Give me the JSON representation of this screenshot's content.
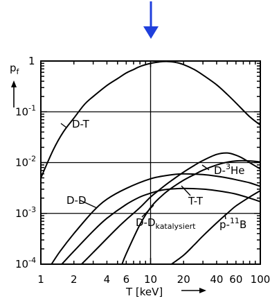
{
  "chart_data": {
    "type": "line",
    "title": "",
    "xlabel": "T [keV]",
    "ylabel": "p_f",
    "x_scale": "log",
    "y_scale": "log",
    "xlim": [
      1,
      100
    ],
    "ylim": [
      0.0001,
      1
    ],
    "x_ticks": [
      "1",
      "2",
      "4",
      "6",
      "10",
      "20",
      "40",
      "60",
      "100"
    ],
    "y_ticks": [
      "10^-4",
      "10^-3",
      "10^-2",
      "10^-1",
      "1"
    ],
    "grid_lines": {
      "x": [
        10
      ],
      "y": [
        0.001,
        0.01,
        0.1
      ]
    },
    "marker": {
      "type": "arrow",
      "color": "#1f3fdc",
      "x": 10
    },
    "series": [
      {
        "name": "D-T",
        "x": [
          1,
          1.3,
          1.6,
          2,
          2.5,
          3,
          4,
          5,
          6,
          7,
          8,
          10,
          12,
          14,
          17,
          20,
          25,
          30,
          40,
          50,
          60,
          80,
          100
        ],
        "values": [
          0.005,
          0.018,
          0.04,
          0.075,
          0.14,
          0.2,
          0.33,
          0.45,
          0.58,
          0.68,
          0.78,
          0.9,
          0.96,
          0.98,
          0.94,
          0.85,
          0.68,
          0.53,
          0.34,
          0.22,
          0.15,
          0.08,
          0.055
        ]
      },
      {
        "name": "D-D",
        "x": [
          1.25,
          1.5,
          2,
          3,
          4,
          6,
          10,
          15,
          20,
          30,
          40,
          50,
          60,
          80,
          100
        ],
        "values": [
          0.0001,
          0.00018,
          0.0004,
          0.0011,
          0.0019,
          0.0031,
          0.0048,
          0.0057,
          0.006,
          0.0058,
          0.0054,
          0.005,
          0.0046,
          0.004,
          0.0034
        ]
      },
      {
        "name": "D-D katalysiert",
        "x": [
          1.55,
          2,
          3,
          4,
          6,
          8,
          10,
          12,
          15,
          20,
          30,
          40,
          50,
          60,
          80,
          100
        ],
        "values": [
          0.0001,
          0.00018,
          0.00045,
          0.0008,
          0.0015,
          0.0021,
          0.0025,
          0.0028,
          0.003,
          0.0031,
          0.003,
          0.0028,
          0.0026,
          0.0024,
          0.002,
          0.0017
        ]
      },
      {
        "name": "D-3He",
        "x": [
          2.35,
          3,
          4,
          5,
          6,
          8,
          10,
          12,
          15,
          20,
          25,
          30,
          40,
          50,
          60,
          70,
          80,
          100
        ],
        "values": [
          0.0001,
          0.00017,
          0.00032,
          0.00052,
          0.00075,
          0.0013,
          0.0021,
          0.0029,
          0.0042,
          0.0065,
          0.0088,
          0.011,
          0.0145,
          0.0155,
          0.014,
          0.012,
          0.01,
          0.0075
        ]
      },
      {
        "name": "T-T",
        "x": [
          5.5,
          6,
          8,
          10,
          12,
          15,
          20,
          25,
          30,
          40,
          50,
          60,
          80,
          100
        ],
        "values": [
          0.0001,
          0.00016,
          0.0006,
          0.0013,
          0.002,
          0.003,
          0.0045,
          0.0058,
          0.0071,
          0.009,
          0.0102,
          0.0108,
          0.0108,
          0.0103
        ]
      },
      {
        "name": "p-11B",
        "x": [
          15.5,
          20,
          25,
          30,
          40,
          50,
          60,
          80,
          100
        ],
        "values": [
          0.0001,
          0.00015,
          0.00024,
          0.00036,
          0.00065,
          0.001,
          0.0014,
          0.0021,
          0.0028
        ]
      }
    ],
    "labels": [
      {
        "text": "D-T"
      },
      {
        "text": "D-D"
      },
      {
        "text": "D-D",
        "sub": "katalysiert"
      },
      {
        "text": "D-",
        "sup": "3",
        "tail": "He"
      },
      {
        "text": "T-T"
      },
      {
        "text": "p-",
        "sup": "11",
        "tail": "B"
      }
    ]
  }
}
